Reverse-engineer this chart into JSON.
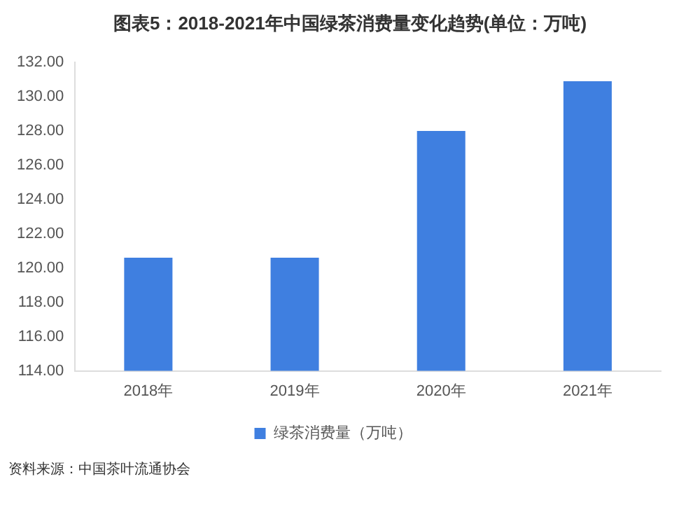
{
  "chart_data": {
    "type": "bar",
    "title": "图表5：2018-2021年中国绿茶消费量变化趋势(单位：万吨)",
    "categories": [
      "2018年",
      "2019年",
      "2020年",
      "2021年"
    ],
    "series": [
      {
        "name": "绿茶消费量（万吨）",
        "color": "#3f7fe0",
        "values": [
          120.6,
          120.6,
          128.0,
          130.9
        ]
      }
    ],
    "ylim": [
      114,
      132
    ],
    "yticks": [
      {
        "value": 114,
        "label": "114.00"
      },
      {
        "value": 116,
        "label": "116.00"
      },
      {
        "value": 118,
        "label": "118.00"
      },
      {
        "value": 120,
        "label": "120.00"
      },
      {
        "value": 122,
        "label": "122.00"
      },
      {
        "value": 124,
        "label": "124.00"
      },
      {
        "value": 126,
        "label": "126.00"
      },
      {
        "value": 128,
        "label": "128.00"
      },
      {
        "value": 130,
        "label": "130.00"
      },
      {
        "value": 132,
        "label": "132.00"
      }
    ],
    "grid": false,
    "legend": "bottom",
    "annotations": [
      "资料来源：中国茶叶流通协会"
    ]
  }
}
